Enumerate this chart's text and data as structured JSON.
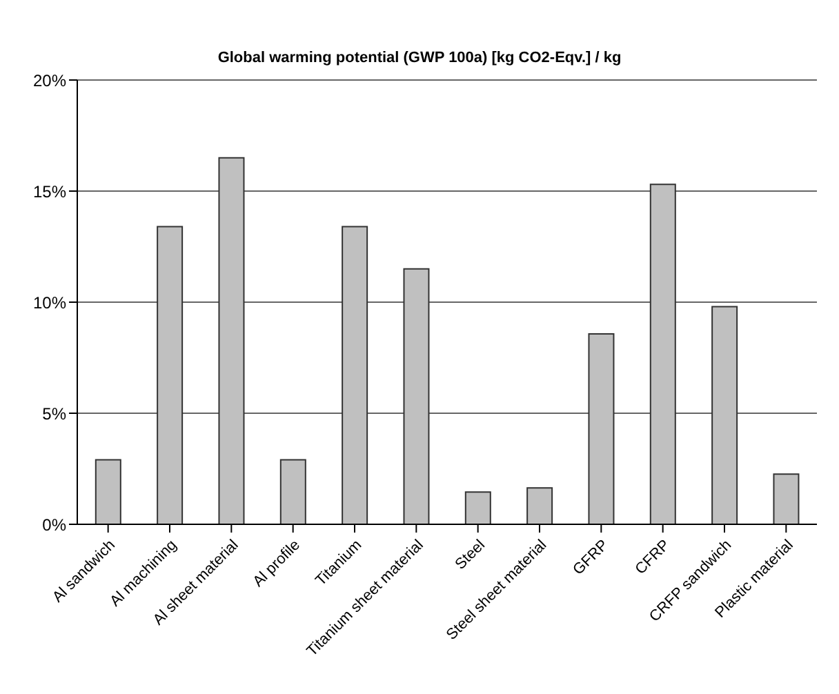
{
  "chart_data": {
    "type": "bar",
    "title": "Global warming potential (GWP 100a) [kg CO2-Eqv.] / kg",
    "categories": [
      "Al sandwich",
      "Al machining",
      "Al sheet material",
      "Al profile",
      "Titanium",
      "Titanium sheet material",
      "Steel",
      "Steel sheet material",
      "GFRP",
      "CFRP",
      "CRFP sandwich",
      "Plastic material"
    ],
    "values": [
      2.9,
      13.4,
      16.5,
      2.9,
      13.4,
      11.5,
      1.45,
      1.64,
      8.57,
      15.3,
      9.8,
      2.26
    ],
    "color": "#c0c0c0",
    "ylim": [
      0,
      20
    ],
    "yticks": [
      {
        "value": 0,
        "label": "0%"
      },
      {
        "value": 5,
        "label": "5%"
      },
      {
        "value": 10,
        "label": "10%"
      },
      {
        "value": 15,
        "label": "15%"
      },
      {
        "value": 20,
        "label": "20%"
      }
    ],
    "grid": "y"
  }
}
